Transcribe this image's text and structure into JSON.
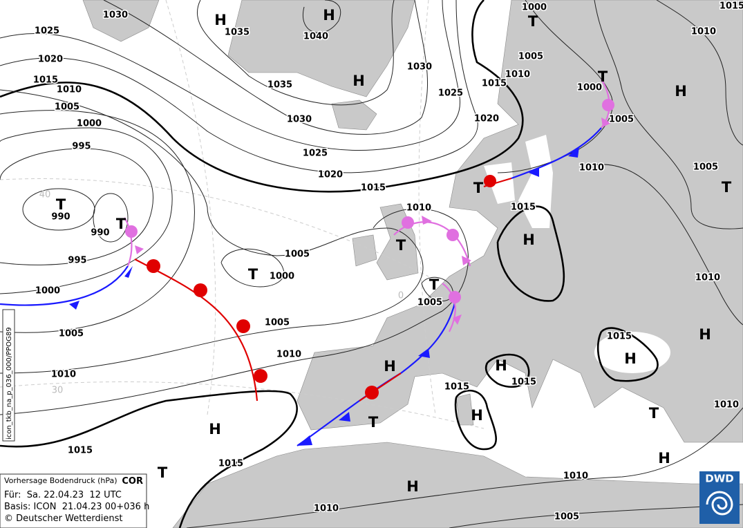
{
  "isobar_labels": [
    "1030",
    "1025",
    "1035",
    "1040",
    "1020",
    "1015",
    "1010",
    "1005",
    "1000",
    "995",
    "990",
    "990",
    "995",
    "1000",
    "1005",
    "1010",
    "1015",
    "1015",
    "1010",
    "1035",
    "1030",
    "1025",
    "1020",
    "1015",
    "1030",
    "1025",
    "1020",
    "1015",
    "1010",
    "1005",
    "1000",
    "1000",
    "1005",
    "1010",
    "1015",
    "1010",
    "1005",
    "1015",
    "1010",
    "1005",
    "1000",
    "1005",
    "1010",
    "1005",
    "1015",
    "1015",
    "1015",
    "1010",
    "1010",
    "1010",
    "1005"
  ],
  "pressure_centers": [
    "H",
    "H",
    "T",
    "H",
    "H",
    "T",
    "T",
    "T",
    "T",
    "T",
    "T",
    "H",
    "T",
    "T",
    "H",
    "H",
    "T",
    "T",
    "H",
    "H",
    "H",
    "H",
    "T",
    "H",
    "H"
  ],
  "grid_labels": [
    "40",
    "30",
    "0"
  ],
  "side_label": "icon_tkb_na_p_036_000/PPOG89",
  "info_box": {
    "title": "Vorhersage Bodendruck (hPa)",
    "flag": "COR",
    "valid": "Für:  Sa. 22.04.23  12 UTC",
    "base": "Basis: ICON  21.04.23 00+036 h",
    "copyright": "© Deutscher Wetterdienst"
  },
  "logo": "DWD"
}
